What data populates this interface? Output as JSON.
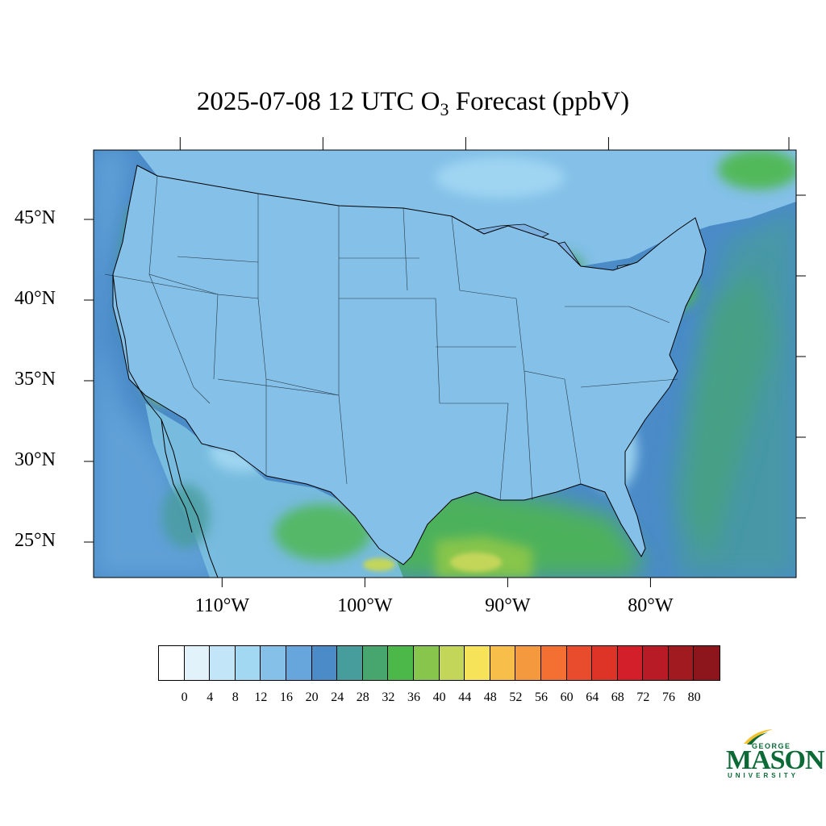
{
  "title": {
    "prefix": "2025-07-08 12 UTC O",
    "subscript": "3",
    "suffix": " Forecast (ppbV)"
  },
  "map": {
    "lon_range": [
      -119.0,
      -69.8
    ],
    "lat_range": [
      22.8,
      49.3
    ],
    "lat_labels": [
      "25°N",
      "30°N",
      "35°N",
      "40°N",
      "45°N"
    ],
    "lat_values": [
      25,
      30,
      35,
      40,
      45
    ],
    "lon_labels": [
      "110°W",
      "100°W",
      "90°W",
      "80°W"
    ],
    "lon_values": [
      -110,
      -100,
      -90,
      -80
    ],
    "colors": {
      "ocean": "#4a8bc8",
      "land_base": "#7ab8e0",
      "coast": "#000000"
    }
  },
  "colorbar": {
    "tick_labels": [
      "0",
      "4",
      "8",
      "12",
      "16",
      "20",
      "24",
      "28",
      "32",
      "36",
      "40",
      "44",
      "48",
      "52",
      "56",
      "60",
      "64",
      "68",
      "72",
      "76",
      "80"
    ],
    "colors": [
      "#ffffff",
      "#e1f2fb",
      "#c2e6f8",
      "#a3d8f3",
      "#84c0e8",
      "#66a6dc",
      "#4a8bc8",
      "#479c9c",
      "#46a66e",
      "#4db84a",
      "#87c54c",
      "#c3d65a",
      "#f6e35a",
      "#f7be4a",
      "#f5993f",
      "#f37032",
      "#e84c2c",
      "#dd3427",
      "#d21f2a",
      "#b81a26",
      "#a11a20",
      "#8c161c"
    ]
  },
  "logo": {
    "line1": "GEORGE",
    "line2": "MASON",
    "line3": "UNIVERSITY",
    "color": "#0b6a36",
    "accent": "#f2c232"
  }
}
